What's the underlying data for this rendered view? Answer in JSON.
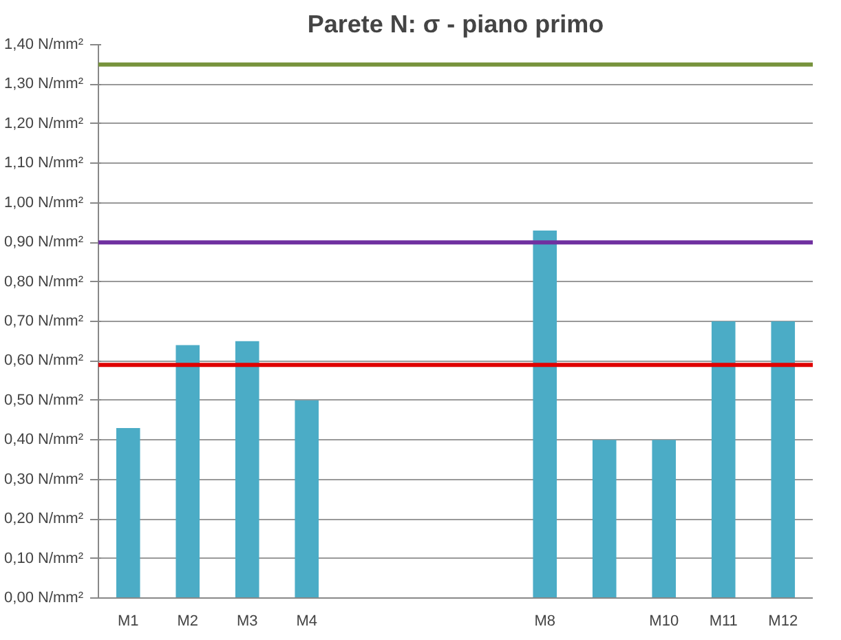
{
  "chart_data": {
    "type": "bar",
    "title": "Parete N: σ - piano primo",
    "categories": [
      "M1",
      "M2",
      "M3",
      "M4",
      null,
      null,
      null,
      "M8",
      null,
      "M10",
      "M11",
      "M12"
    ],
    "values": [
      0.43,
      0.64,
      0.65,
      0.5,
      null,
      null,
      null,
      0.93,
      0.4,
      0.4,
      0.7,
      0.7
    ],
    "color": "#4bacc6",
    "ylim": [
      0,
      1.4
    ],
    "yticks": [
      {
        "value": 0,
        "label": "0,00 N/mm²"
      },
      {
        "value": 0.1,
        "label": "0,10 N/mm²"
      },
      {
        "value": 0.2,
        "label": "0,20 N/mm²"
      },
      {
        "value": 0.3,
        "label": "0,30 N/mm²"
      },
      {
        "value": 0.4,
        "label": "0,40 N/mm²"
      },
      {
        "value": 0.5,
        "label": "0,50 N/mm²"
      },
      {
        "value": 0.6,
        "label": "0,60 N/mm²"
      },
      {
        "value": 0.7,
        "label": "0,70 N/mm²"
      },
      {
        "value": 0.8,
        "label": "0,80 N/mm²"
      },
      {
        "value": 0.9,
        "label": "0,90 N/mm²"
      },
      {
        "value": 1.0,
        "label": "1,00 N/mm²"
      },
      {
        "value": 1.1,
        "label": "1,10 N/mm²"
      },
      {
        "value": 1.2,
        "label": "1,20 N/mm²"
      },
      {
        "value": 1.3,
        "label": "1,30 N/mm²"
      },
      {
        "value": 1.4,
        "label": "1,40 N/mm²"
      }
    ],
    "grid": "y",
    "ref_lines": [
      {
        "axis": "y",
        "value": 1.35,
        "color": "#77933c"
      },
      {
        "axis": "y",
        "value": 0.9,
        "color": "#7030a0"
      },
      {
        "axis": "y",
        "value": 0.59,
        "color": "#e00000"
      }
    ]
  }
}
